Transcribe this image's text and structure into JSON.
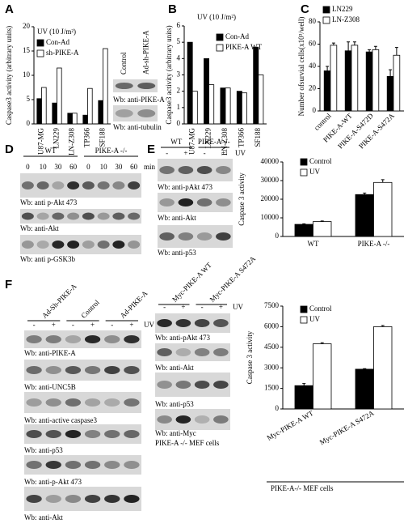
{
  "panel_letters": [
    "A",
    "B",
    "C",
    "D",
    "E",
    "F"
  ],
  "chart_data": [
    {
      "type": "bar",
      "title": "UV (10 J/m²)",
      "ylabel": "Caspase3 activity (arbitrary units)",
      "categories": [
        "U87-MG",
        "LN229",
        "LN-Z308",
        "TP366",
        "SF188"
      ],
      "series": [
        {
          "name": "Con-Ad",
          "color": "#000000",
          "values": [
            5.2,
            4.3,
            2.2,
            1.8,
            4.8
          ]
        },
        {
          "name": "sh-PIKE-A",
          "color": "#ffffff",
          "values": [
            7.5,
            11.5,
            2.2,
            7.3,
            15.5
          ]
        }
      ],
      "ylim": [
        0,
        20
      ],
      "yticks": [
        0,
        5,
        10,
        15,
        20
      ]
    },
    {
      "type": "bar",
      "title": "UV (10 J/m²)",
      "ylabel": "Caspase3 activity (arbitrary units)",
      "categories": [
        "U87-MG",
        "LN229",
        "LN-Z308",
        "TP366",
        "SF188"
      ],
      "series": [
        {
          "name": "Con-Ad",
          "color": "#000000",
          "values": [
            5,
            4,
            2.2,
            2,
            4.7
          ]
        },
        {
          "name": "PIKE-A WT",
          "color": "#ffffff",
          "values": [
            2,
            2.4,
            2.2,
            1.9,
            3
          ]
        }
      ],
      "ylim": [
        0,
        6
      ],
      "yticks": [
        0,
        1,
        2,
        3,
        4,
        5,
        6
      ]
    },
    {
      "type": "bar",
      "ylabel": "Number ofsurvial cells(x10³/well)",
      "categories": [
        "control",
        "PIKE-A-WT",
        "PIKE-A-S472D",
        "PIKE-A-S472A"
      ],
      "series": [
        {
          "name": "LN229",
          "color": "#000000",
          "values": [
            36,
            54,
            53,
            31
          ],
          "errors": [
            4,
            8,
            2,
            6
          ]
        },
        {
          "name": "LN-Z308",
          "color": "#ffffff",
          "values": [
            59,
            59,
            55,
            50
          ],
          "errors": [
            2,
            3,
            3,
            7
          ]
        }
      ],
      "ylim": [
        0,
        80
      ],
      "yticks": [
        0,
        20,
        40,
        60,
        80
      ]
    },
    {
      "type": "bar",
      "ylabel": "Caspase 3 activity",
      "categories": [
        "WT",
        "PIKE-A -/-"
      ],
      "series": [
        {
          "name": "Control",
          "color": "#000000",
          "values": [
            6500,
            22500
          ],
          "errors": [
            300,
            800
          ]
        },
        {
          "name": "UV",
          "color": "#ffffff",
          "values": [
            8000,
            29000
          ],
          "errors": [
            300,
            1500
          ]
        }
      ],
      "ylim": [
        0,
        40000
      ],
      "yticks": [
        0,
        10000,
        20000,
        30000,
        40000
      ]
    },
    {
      "type": "bar",
      "ylabel": "Caspase 3 activity",
      "caption": "PIKE-A-/- MEF cells",
      "categories": [
        "Myc-PIKE-A WT",
        "Myc-PIKE-A S472A"
      ],
      "series": [
        {
          "name": "Control",
          "color": "#000000",
          "values": [
            1700,
            2900
          ],
          "errors": [
            150,
            40
          ]
        },
        {
          "name": "UV",
          "color": "#ffffff",
          "values": [
            4750,
            6000
          ],
          "errors": [
            80,
            80
          ]
        }
      ],
      "ylim": [
        0,
        7500
      ],
      "yticks": [
        0,
        1500,
        3000,
        4500,
        6000,
        7500
      ]
    }
  ],
  "blots": [
    {
      "lanes": [
        "Control",
        "Ad-sh-PIKE-A"
      ],
      "rows": [
        "Wb: anti-PIKE-A",
        "Wb: anti-tubulin"
      ]
    },
    {
      "groups": [
        "WT",
        "PIKE-A -/-"
      ],
      "lanes": [
        "0",
        "10",
        "30",
        "60",
        "0",
        "10",
        "30",
        "60"
      ],
      "unit": "min",
      "rows": [
        "Wb: anti p-Akt 473",
        "Wb: anti-Akt",
        "Wb: anti p-GSK3b"
      ]
    },
    {
      "groups": [
        "WT",
        "PIKE-A -/-"
      ],
      "lanes": [
        "-",
        "+",
        "-",
        "+"
      ],
      "treatment": "UV",
      "rows": [
        "Wb: anti-pAkt 473",
        "Wb: anti-Akt",
        "Wb: anti-p53"
      ]
    },
    {
      "groups": [
        "Ad-Sh-PIKE-A",
        "Control",
        "Ad-PIKE-A"
      ],
      "lanes": [
        "-",
        "+",
        "-",
        "+",
        "-",
        "+"
      ],
      "treatment": "UV",
      "rows": [
        "Wb: anti-PIKE-A",
        "Wb: anti-UNC5B",
        "Wb: anti-active caspase3",
        "Wb: anti-p53",
        "Wb: anti-p-Akt 473",
        "Wb: anti-Akt"
      ]
    },
    {
      "groups": [
        "Myc-PIKE-A WT",
        "Myc-PIKE-A S472A"
      ],
      "lanes": [
        "-",
        "+",
        "-",
        "+"
      ],
      "treatment": "UV",
      "rows": [
        "Wb: anti-pAkt 473",
        "Wb: anti-Akt",
        "Wb: anti-p53",
        "Wb: anti-Myc"
      ],
      "caption": "PIKE-A -/- MEF cells"
    }
  ]
}
